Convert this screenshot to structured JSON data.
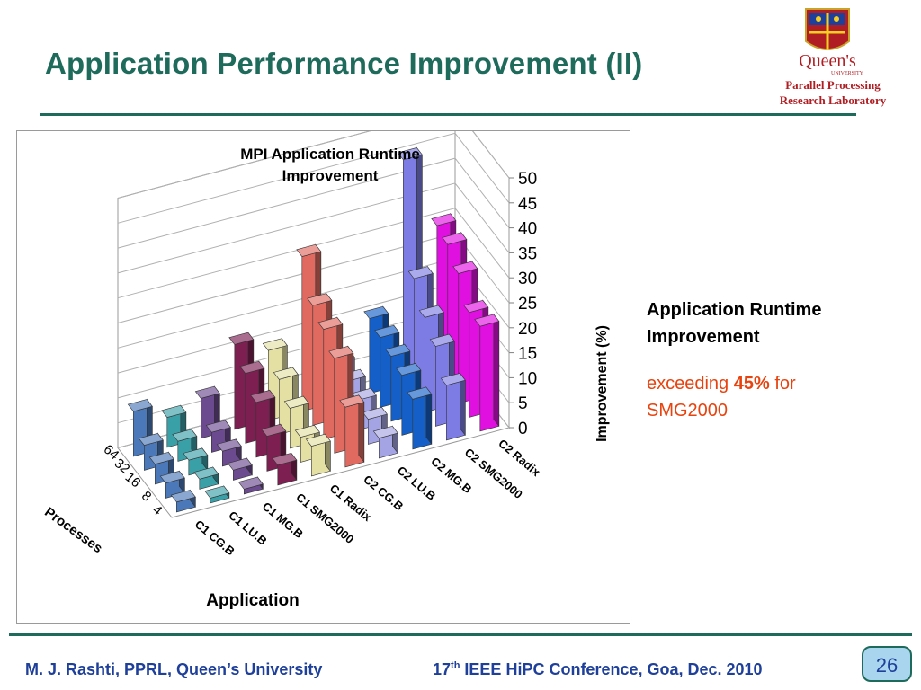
{
  "slide": {
    "title": "Application Performance Improvement (II)",
    "logo": {
      "name": "Queen's",
      "sub": "UNIVERSITY"
    },
    "lab_line1": "Parallel Processing",
    "lab_line2": "Research Laboratory",
    "side_heading_1": "Application Runtime",
    "side_heading_2": "Improvement",
    "side_note_pre": "exceeding ",
    "side_note_value": "45%",
    "side_note_post": " for",
    "side_note_line2": "SMG2000",
    "footer_left": "M. J. Rashti, PPRL, Queen’s University",
    "footer_conf_num": "17",
    "footer_conf_sup": "th",
    "footer_conf_rest": " IEEE HiPC Conference, Goa, Dec. 2010",
    "page_number": "26"
  },
  "chart_data": {
    "type": "bar3d",
    "title_line1": "MPI Application  Runtime",
    "title_line2": "Improvement",
    "xlabel": "Application",
    "ylabel": "Improvement  (%)",
    "depth_label": "Processes",
    "ylim": [
      0,
      50
    ],
    "ticks": [
      "0",
      "5",
      "10",
      "15",
      "20",
      "25",
      "30",
      "35",
      "40",
      "45",
      "50"
    ],
    "categories": [
      "C1 CG.B",
      "C1 LU.B",
      "C1 MG.B",
      "C1 SMG2000",
      "C1 Radix",
      "C2 CG.B",
      "C2 LU.B",
      "C2 MG.B",
      "C2 SMG2000",
      "C2 Radix"
    ],
    "process_counts": [
      "4",
      "8",
      "16",
      "32",
      "64"
    ],
    "colors": [
      "#4a78b8",
      "#3aa0a8",
      "#6b4a90",
      "#7e1f52",
      "#e4e0a4",
      "#e06a60",
      "#a4a4e4",
      "#1460c8",
      "#7c7ce4",
      "#e010e0"
    ],
    "values": [
      [
        2,
        3,
        4,
        5,
        9
      ],
      [
        1,
        2,
        3,
        4,
        6
      ],
      [
        1,
        2,
        3,
        4,
        8
      ],
      [
        4,
        7,
        11,
        14,
        17
      ],
      [
        6,
        5,
        8,
        11,
        14
      ],
      [
        12,
        19,
        22,
        24,
        31
      ],
      [
        4,
        5,
        6,
        7,
        8
      ],
      [
        10,
        12,
        13,
        14,
        15
      ],
      [
        11,
        16,
        19,
        24,
        45
      ],
      [
        21,
        21,
        26,
        29,
        30
      ]
    ]
  }
}
